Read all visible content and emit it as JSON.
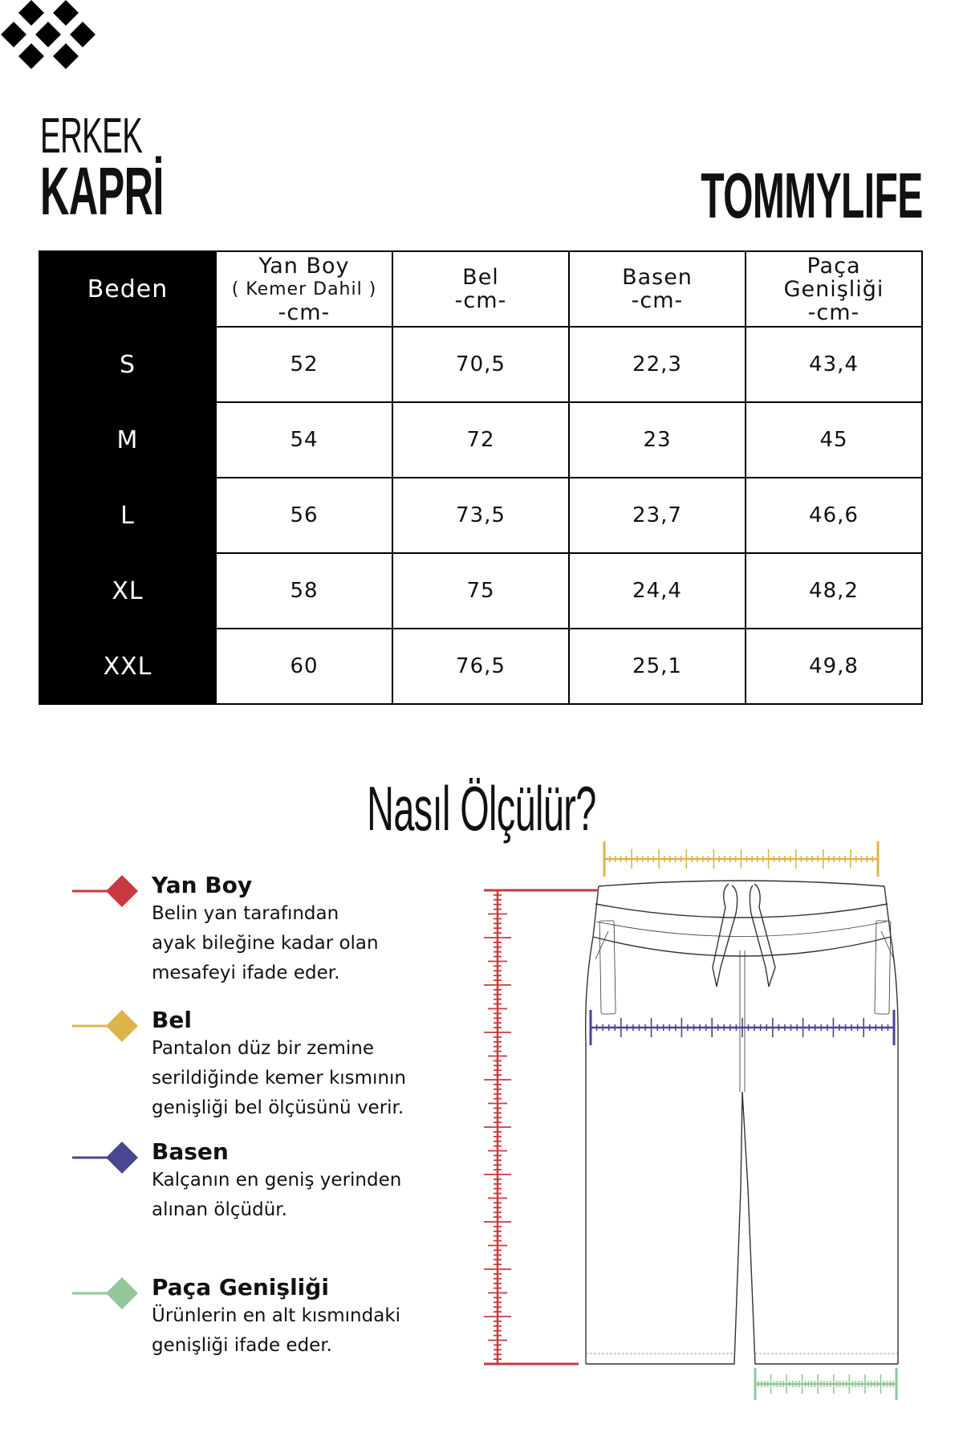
{
  "header": {
    "category": "ERKEK",
    "product": "KAPRİ",
    "brand": "TOMMYLIFE"
  },
  "table": {
    "columns": [
      {
        "label": "Beden"
      },
      {
        "label": "Yan Boy",
        "sub": "( Kemer Dahil )",
        "unit": "-cm-"
      },
      {
        "label": "Bel",
        "unit": "-cm-"
      },
      {
        "label": "Basen",
        "unit": "-cm-"
      },
      {
        "label": "Paça",
        "label2": "Genişliği",
        "unit": "-cm-"
      }
    ],
    "rows": [
      [
        "S",
        "52",
        "70,5",
        "22,3",
        "43,4"
      ],
      [
        "M",
        "54",
        "72",
        "23",
        "45"
      ],
      [
        "L",
        "56",
        "73,5",
        "23,7",
        "46,6"
      ],
      [
        "XL",
        "58",
        "75",
        "24,4",
        "48,2"
      ],
      [
        "XXL",
        "60",
        "76,5",
        "25,1",
        "49,8"
      ]
    ]
  },
  "guide": {
    "title": "Nasıl Ölçülür?",
    "items": [
      {
        "title": "Yan Boy",
        "lines": [
          "Belin yan tarafından",
          "ayak bileğine kadar olan",
          "mesafeyi ifade eder."
        ],
        "color": "#c8393f"
      },
      {
        "title": "Bel",
        "lines": [
          "Pantalon düz bir zemine",
          "serildiğinde kemer kısmının",
          "genişliği bel ölçüsünü verir."
        ],
        "color": "#dbb44c"
      },
      {
        "title": "Basen",
        "lines": [
          "Kalçanın en geniş yerinden",
          "alınan ölçüdür."
        ],
        "color": "#4a4690"
      },
      {
        "title": "Paça Genişliği",
        "lines": [
          "Ürünlerin en alt kısmındaki",
          "genişliği ifade eder."
        ],
        "color": "#93c79a"
      }
    ]
  }
}
